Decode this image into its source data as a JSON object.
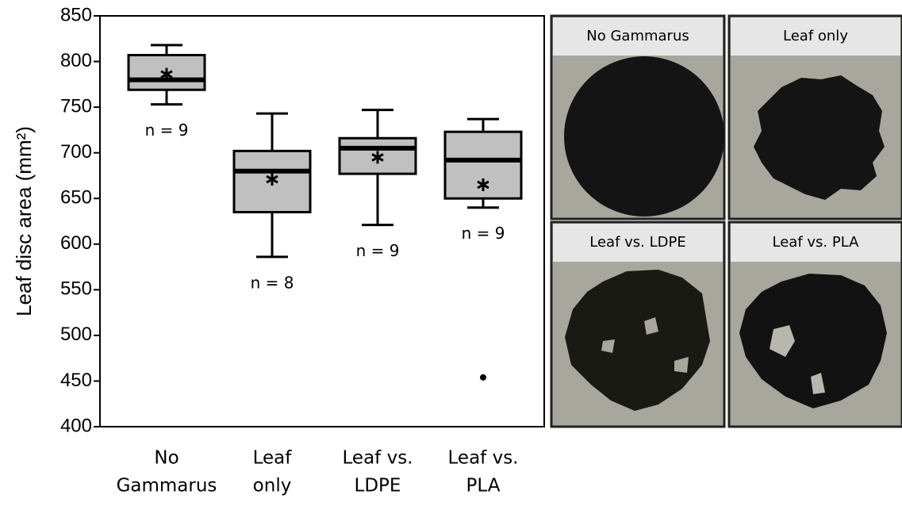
{
  "chart_data": {
    "type": "box",
    "y_label": "Leaf disc area (mm²)",
    "categories": [
      [
        "No",
        "Gammarus"
      ],
      [
        "Leaf",
        "only"
      ],
      [
        "Leaf vs.",
        "LDPE"
      ],
      [
        "Leaf vs.",
        "PLA"
      ]
    ],
    "boxes": [
      {
        "whisker_low": 753,
        "q1": 769,
        "median": 780,
        "q3": 807,
        "whisker_high": 818,
        "mean": 786,
        "outliers": []
      },
      {
        "whisker_low": 586,
        "q1": 635,
        "median": 680,
        "q3": 702,
        "whisker_high": 743,
        "mean": 671,
        "outliers": []
      },
      {
        "whisker_low": 621,
        "q1": 677,
        "median": 705,
        "q3": 716,
        "whisker_high": 747,
        "mean": 695,
        "outliers": []
      },
      {
        "whisker_low": 640,
        "q1": 650,
        "median": 692,
        "q3": 723,
        "whisker_high": 737,
        "mean": 665,
        "outliers": [
          454
        ]
      }
    ],
    "annotations": [
      "n = 9",
      "n = 8",
      "n = 9",
      "n = 9"
    ],
    "box_color": "#c0c0c0",
    "ylim": [
      400,
      850
    ],
    "yticks": [
      400,
      450,
      500,
      550,
      600,
      650,
      700,
      750,
      800,
      850
    ]
  },
  "photos": [
    "No Gammarus",
    "Leaf only",
    "Leaf vs. LDPE",
    "Leaf vs. PLA"
  ]
}
